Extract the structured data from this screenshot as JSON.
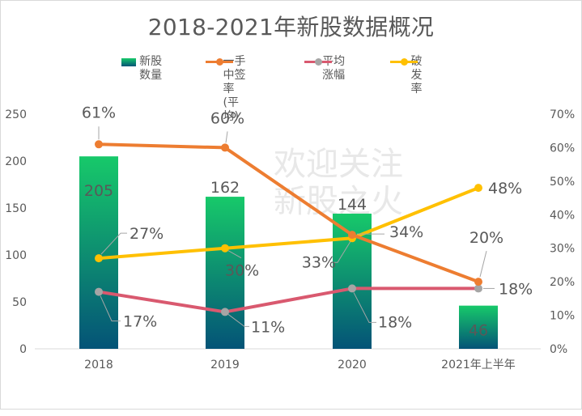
{
  "chart_data": {
    "type": "bar",
    "title": "2018-2021年新股数据概况",
    "categories": [
      "2018",
      "2019",
      "2020",
      "2021年上半年"
    ],
    "xlabel": "",
    "ylabel": "",
    "y_left": {
      "range": [
        0,
        250
      ],
      "ticks": [
        "0",
        "50",
        "100",
        "150",
        "200",
        "250"
      ]
    },
    "y_right": {
      "range": [
        0,
        70
      ],
      "ticks": [
        "0%",
        "10%",
        "20%",
        "30%",
        "40%",
        "50%",
        "60%",
        "70%"
      ]
    },
    "grid": false,
    "legend_position": "top",
    "series": [
      {
        "name": "新股数量",
        "type": "bar",
        "axis": "left",
        "values": [
          205,
          162,
          144,
          46
        ],
        "labels": [
          "205",
          "162",
          "144",
          "46"
        ],
        "color_top": "#17c96a",
        "color_bottom": "#045377"
      },
      {
        "name": "一手中签率(平均)",
        "type": "line",
        "axis": "right",
        "values": [
          61,
          60,
          34,
          20
        ],
        "labels": [
          "61%",
          "60%",
          "34%",
          "20%"
        ],
        "color": "#ed7d31"
      },
      {
        "name": "平均涨幅",
        "type": "line",
        "axis": "right",
        "values": [
          17,
          11,
          18,
          18
        ],
        "labels": [
          "17%",
          "11%",
          "18%",
          "18%"
        ],
        "color": "#d9596f",
        "marker_color": "#a5a5a5"
      },
      {
        "name": "破发率",
        "type": "line",
        "axis": "right",
        "values": [
          27,
          30,
          33,
          48
        ],
        "labels": [
          "27%",
          "30%",
          "33%",
          "48%"
        ],
        "color": "#ffc000"
      }
    ],
    "legend": [
      {
        "label": "新股数量",
        "kind": "bar"
      },
      {
        "label_line1": "一手中签率",
        "label_line2": "(平均)",
        "kind": "line",
        "color": "#ed7d31",
        "marker": "#ed7d31"
      },
      {
        "label": "平均涨幅",
        "kind": "line",
        "color": "#d9596f",
        "marker": "#a5a5a5"
      },
      {
        "label": "破发率",
        "kind": "line",
        "color": "#ffc000",
        "marker": "#ffc000"
      }
    ],
    "watermark": [
      "欢迎关注",
      "新股之火"
    ]
  }
}
